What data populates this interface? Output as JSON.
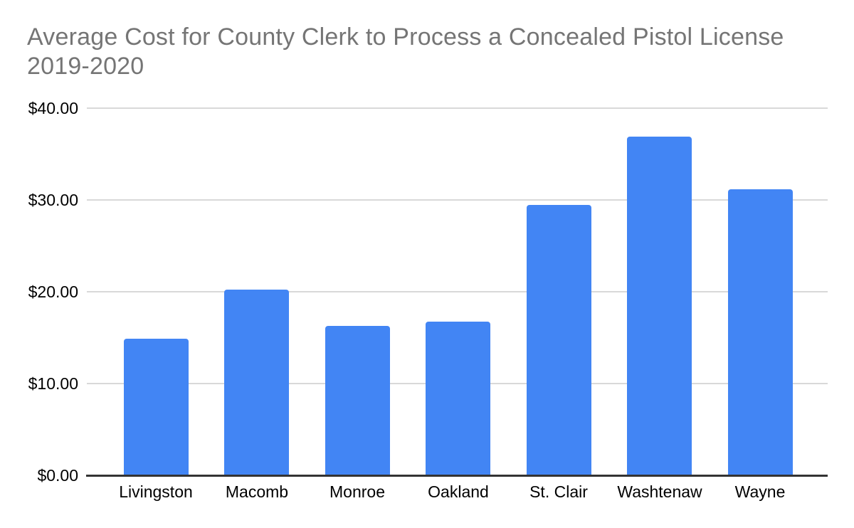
{
  "chart_data": {
    "type": "bar",
    "title": "Average Cost for County Clerk to Process a Concealed Pistol License 2019-2020",
    "categories": [
      "Livingston",
      "Macomb",
      "Monroe",
      "Oakland",
      "St. Clair",
      "Washtenaw",
      "Wayne"
    ],
    "values": [
      14.8,
      20.15,
      16.2,
      16.7,
      29.4,
      36.8,
      31.1
    ],
    "series_name": "Average Cost",
    "xlabel": "",
    "ylabel": "",
    "ylim": [
      0,
      40
    ],
    "y_ticks": [
      {
        "value": 0,
        "label": "$0.00"
      },
      {
        "value": 10,
        "label": "$10.00"
      },
      {
        "value": 20,
        "label": "$20.00"
      },
      {
        "value": 30,
        "label": "$30.00"
      },
      {
        "value": 40,
        "label": "$40.00"
      }
    ],
    "grid": "horizontal",
    "legend_position": "none",
    "bar_color": "#4285f4"
  },
  "colors": {
    "title_text": "#757575",
    "axis_label_text": "#000000",
    "gridline": "#d9d9d9",
    "axis_baseline": "#333333",
    "background": "#ffffff"
  }
}
